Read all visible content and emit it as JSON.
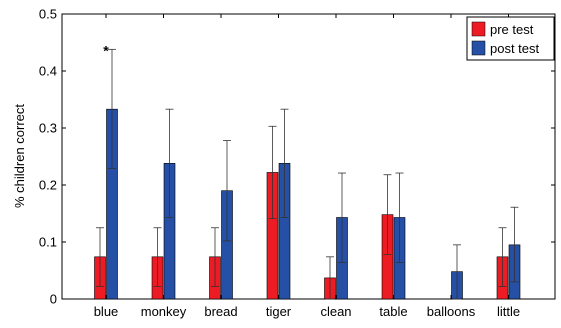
{
  "chart_data": {
    "type": "bar",
    "title": "",
    "xlabel": "",
    "ylabel": "% children correct",
    "ylim": [
      0,
      0.5
    ],
    "yticks": [
      "0",
      "0.1",
      "0.2",
      "0.3",
      "0.4",
      "0.5"
    ],
    "categories": [
      "blue",
      "monkey",
      "bread",
      "tiger",
      "clean",
      "table",
      "balloons",
      "little"
    ],
    "series": [
      {
        "name": "pre test",
        "color": "#ed1c24",
        "values": [
          0.074,
          0.074,
          0.074,
          0.222,
          0.037,
          0.148,
          0.0,
          0.074
        ],
        "err_low": [
          0.022,
          0.022,
          0.022,
          0.141,
          0.0,
          0.078,
          0.0,
          0.022
        ],
        "err_high": [
          0.125,
          0.125,
          0.125,
          0.303,
          0.074,
          0.218,
          0.0,
          0.125
        ]
      },
      {
        "name": "post test",
        "color": "#2650a6",
        "values": [
          0.333,
          0.238,
          0.19,
          0.238,
          0.143,
          0.143,
          0.048,
          0.095
        ],
        "err_low": [
          0.229,
          0.143,
          0.102,
          0.143,
          0.064,
          0.064,
          0.0,
          0.03
        ],
        "err_high": [
          0.438,
          0.333,
          0.278,
          0.333,
          0.221,
          0.221,
          0.095,
          0.161
        ]
      }
    ],
    "annotations": [
      {
        "text": "*",
        "category": "blue",
        "value": 0.445
      }
    ],
    "grid": false,
    "legend_position": "top-right"
  }
}
